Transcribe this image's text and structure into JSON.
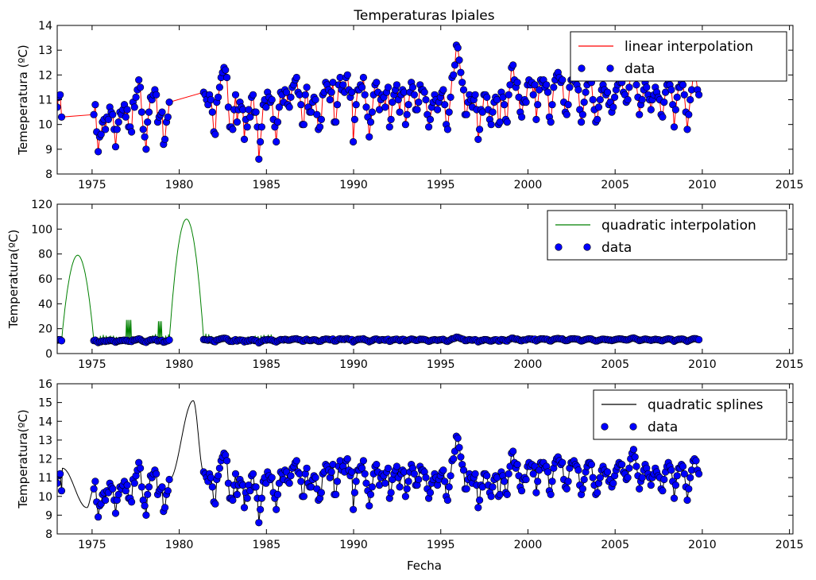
{
  "figure": {
    "title": "Temperaturas Ipiales",
    "xlabel": "Fecha"
  },
  "colors": {
    "linear": "#ff0000",
    "quadratic": "#008000",
    "splines": "#000000",
    "data_marker": "#0000ff"
  },
  "chart_data": [
    {
      "type": "line",
      "title": "Temperaturas Ipiales",
      "xlabel": "",
      "ylabel": "Temeperatura (ºC)",
      "xlim": [
        1973.0,
        2015.2
      ],
      "ylim": [
        8,
        14
      ],
      "xticks": [
        1975,
        1980,
        1985,
        1990,
        1995,
        2000,
        2005,
        2010,
        2015
      ],
      "yticks": [
        8,
        9,
        10,
        11,
        12,
        13,
        14
      ],
      "legend_loc": "top-right",
      "series": [
        {
          "name": "linear interpolation",
          "style": "line",
          "color": "#ff0000"
        },
        {
          "name": "data",
          "style": "markers",
          "color": "#0000ff"
        }
      ]
    },
    {
      "type": "line",
      "title": "",
      "xlabel": "",
      "ylabel": "Temperatura(ºC)",
      "xlim": [
        1973.0,
        2015.2
      ],
      "ylim": [
        0,
        120
      ],
      "xticks": [
        1975,
        1980,
        1985,
        1990,
        1995,
        2000,
        2005,
        2010,
        2015
      ],
      "yticks": [
        0,
        20,
        40,
        60,
        80,
        100,
        120
      ],
      "legend_loc": "top-right",
      "series": [
        {
          "name": "quadratic interpolation",
          "style": "line",
          "color": "#008000"
        },
        {
          "name": "data",
          "style": "markers",
          "color": "#0000ff"
        }
      ],
      "notable": [
        {
          "x": 1974.1,
          "y": 79
        },
        {
          "x": 1977.1,
          "y": 27
        },
        {
          "x": 1978.9,
          "y": 26
        },
        {
          "x": 1980.6,
          "y": 108
        }
      ]
    },
    {
      "type": "line",
      "title": "",
      "xlabel": "Fecha",
      "ylabel": "Temperatura(ºC)",
      "xlim": [
        1973.0,
        2015.2
      ],
      "ylim": [
        8,
        16
      ],
      "xticks": [
        1975,
        1980,
        1985,
        1990,
        1995,
        2000,
        2005,
        2010,
        2015
      ],
      "yticks": [
        8,
        9,
        10,
        11,
        12,
        13,
        14,
        15,
        16
      ],
      "legend_loc": "top-right",
      "series": [
        {
          "name": "quadratic splines",
          "style": "line",
          "color": "#000000"
        },
        {
          "name": "data",
          "style": "markers",
          "color": "#0000ff"
        }
      ],
      "notable": [
        {
          "x": 1973.3,
          "y": 11.5
        },
        {
          "x": 1974.7,
          "y": 9.4
        },
        {
          "x": 1980.8,
          "y": 15.1
        }
      ]
    }
  ],
  "observations": {
    "x_start": 1973.0,
    "x_step": 0.0833,
    "gaps": [
      [
        1973.25,
        1975.1
      ],
      [
        1979.5,
        1981.4
      ]
    ],
    "temperature_c": [
      10.7,
      11.1,
      11.2,
      10.3,
      10.4,
      10.8,
      9.7,
      8.9,
      9.5,
      9.6,
      10.1,
      10.2,
      9.8,
      10.3,
      10.2,
      10.7,
      10.5,
      10.4,
      9.8,
      9.1,
      9.8,
      10.1,
      10.5,
      10.4,
      10.6,
      10.8,
      10.3,
      10.6,
      9.9,
      9.9,
      9.7,
      10.9,
      10.7,
      11.1,
      11.4,
      11.8,
      11.5,
      10.5,
      9.8,
      9.5,
      9.0,
      10.1,
      10.5,
      11.1,
      11.0,
      11.2,
      11.4,
      11.2,
      10.1,
      10.3,
      10.4,
      10.5,
      9.2,
      9.4,
      10.1,
      10.3,
      10.9,
      11.3,
      11.2,
      11.0,
      10.8,
      11.2,
      11.0,
      10.5,
      9.7,
      9.6,
      10.9,
      11.1,
      11.5,
      11.9,
      12.1,
      12.3,
      12.2,
      11.9,
      10.7,
      9.9,
      9.9,
      9.8,
      10.6,
      11.2,
      10.1,
      10.6,
      10.9,
      10.7,
      10.6,
      9.4,
      10.2,
      9.9,
      10.6,
      10.3,
      11.1,
      11.2,
      10.5,
      10.5,
      9.9,
      8.6,
      9.3,
      9.9,
      10.8,
      11.0,
      10.7,
      11.3,
      11.1,
      10.9,
      11.0,
      10.2,
      9.9,
      9.3,
      10.1,
      10.7,
      11.3,
      11.2,
      10.9,
      11.4,
      11.3,
      10.8,
      10.7,
      11.1,
      11.5,
      11.6,
      11.8,
      11.9,
      11.3,
      11.2,
      10.8,
      10.0,
      10.0,
      11.2,
      11.5,
      10.7,
      10.5,
      10.5,
      10.9,
      11.1,
      11.0,
      10.4,
      9.8,
      9.9,
      10.2,
      11.2,
      11.3,
      11.7,
      11.6,
      11.4,
      11.0,
      11.3,
      11.7,
      10.1,
      10.1,
      10.8,
      11.6,
      11.9,
      11.4,
      11.6,
      11.3,
      11.9,
      12.0,
      11.4,
      11.1,
      11.3,
      9.3,
      10.2,
      10.8,
      11.4,
      11.4,
      11.6,
      11.5,
      11.9,
      11.2,
      10.7,
      10.3,
      9.5,
      10.1,
      10.5,
      11.2,
      11.6,
      11.7,
      11.3,
      10.6,
      11.0,
      11.2,
      11.1,
      10.7,
      11.3,
      11.5,
      9.9,
      10.2,
      10.9,
      11.2,
      11.4,
      11.6,
      11.0,
      10.5,
      11.2,
      11.4,
      11.3,
      10.0,
      10.4,
      10.8,
      11.3,
      11.7,
      11.5,
      11.2,
      10.6,
      10.6,
      10.9,
      11.6,
      11.4,
      11.4,
      11.3,
      11.0,
      10.4,
      9.9,
      10.2,
      10.7,
      10.9,
      11.2,
      11.0,
      10.6,
      10.9,
      11.1,
      11.3,
      11.4,
      10.8,
      10.0,
      9.8,
      10.5,
      11.1,
      11.9,
      12.0,
      12.4,
      13.2,
      13.1,
      12.6,
      12.1,
      11.7,
      11.4,
      10.4,
      10.4,
      10.9,
      11.2,
      11.0,
      10.7,
      11.0,
      11.2,
      10.6,
      9.4,
      9.8,
      10.6,
      10.5,
      11.2,
      11.2,
      11.1,
      10.6,
      10.2,
      10.0,
      10.5,
      10.9,
      11.1,
      11.0,
      10.0,
      10.1,
      11.3,
      11.1,
      10.8,
      10.2,
      10.1,
      11.2,
      11.6,
      12.3,
      12.4,
      11.8,
      11.5,
      11.7,
      11.1,
      10.5,
      10.3,
      10.9,
      11.0,
      10.9,
      11.6,
      11.8,
      11.6,
      11.7,
      11.2,
      11.6,
      10.2,
      10.8,
      11.4,
      11.8,
      11.7,
      11.8,
      11.5,
      11.6,
      11.3,
      10.3,
      10.1,
      10.8,
      11.5,
      11.8,
      12.0,
      12.1,
      11.9,
      11.7,
      11.8,
      10.9,
      10.5,
      10.4,
      10.8,
      11.5,
      11.8,
      11.8,
      11.9,
      11.7,
      11.6,
      11.4,
      10.6,
      10.1,
      10.4,
      10.9,
      11.3,
      11.6,
      11.8,
      11.8,
      11.7,
      11.0,
      10.6,
      10.1,
      10.2,
      10.7,
      11.0,
      11.4,
      11.6,
      11.4,
      11.2,
      11.3,
      10.8,
      10.9,
      10.5,
      10.7,
      11.1,
      11.4,
      11.6,
      11.8,
      11.7,
      11.7,
      11.3,
      11.2,
      10.9,
      11.0,
      11.5,
      12.0,
      12.3,
      12.5,
      12.1,
      11.6,
      11.1,
      10.4,
      10.8,
      11.0,
      11.4,
      11.7,
      11.5,
      11.2,
      11.0,
      10.6,
      11.0,
      11.2,
      11.5,
      11.3,
      11.1,
      11.0,
      10.4,
      10.3,
      10.9,
      11.3,
      11.6,
      11.8,
      11.6,
      11.4,
      10.8,
      9.9,
      10.6,
      11.1,
      11.5,
      11.5,
      11.7,
      11.6,
      11.2,
      10.5,
      9.8,
      10.4,
      11.0,
      11.4,
      11.9,
      12.0,
      11.9,
      11.4,
      11.2
    ]
  },
  "interpolation": {
    "fill_after": 1981.4,
    "quadratic_segments": [
      {
        "x0": 1973.25,
        "x1": 1975.1,
        "peak": 79.0
      },
      {
        "x0": 1976.95,
        "x1": 1977.25,
        "peak": 27.0
      },
      {
        "x0": 1978.75,
        "x1": 1979.05,
        "peak": 26.0
      },
      {
        "x0": 1979.5,
        "x1": 1981.4,
        "peak": 108.0
      }
    ],
    "spline_segments": [
      {
        "x0": 1973.25,
        "x1": 1975.1,
        "via": [
          [
            1973.3,
            11.5
          ],
          [
            1974.7,
            9.4
          ]
        ]
      },
      {
        "x0": 1979.5,
        "x1": 1981.4,
        "via": [
          [
            1980.8,
            15.1
          ]
        ]
      }
    ]
  }
}
